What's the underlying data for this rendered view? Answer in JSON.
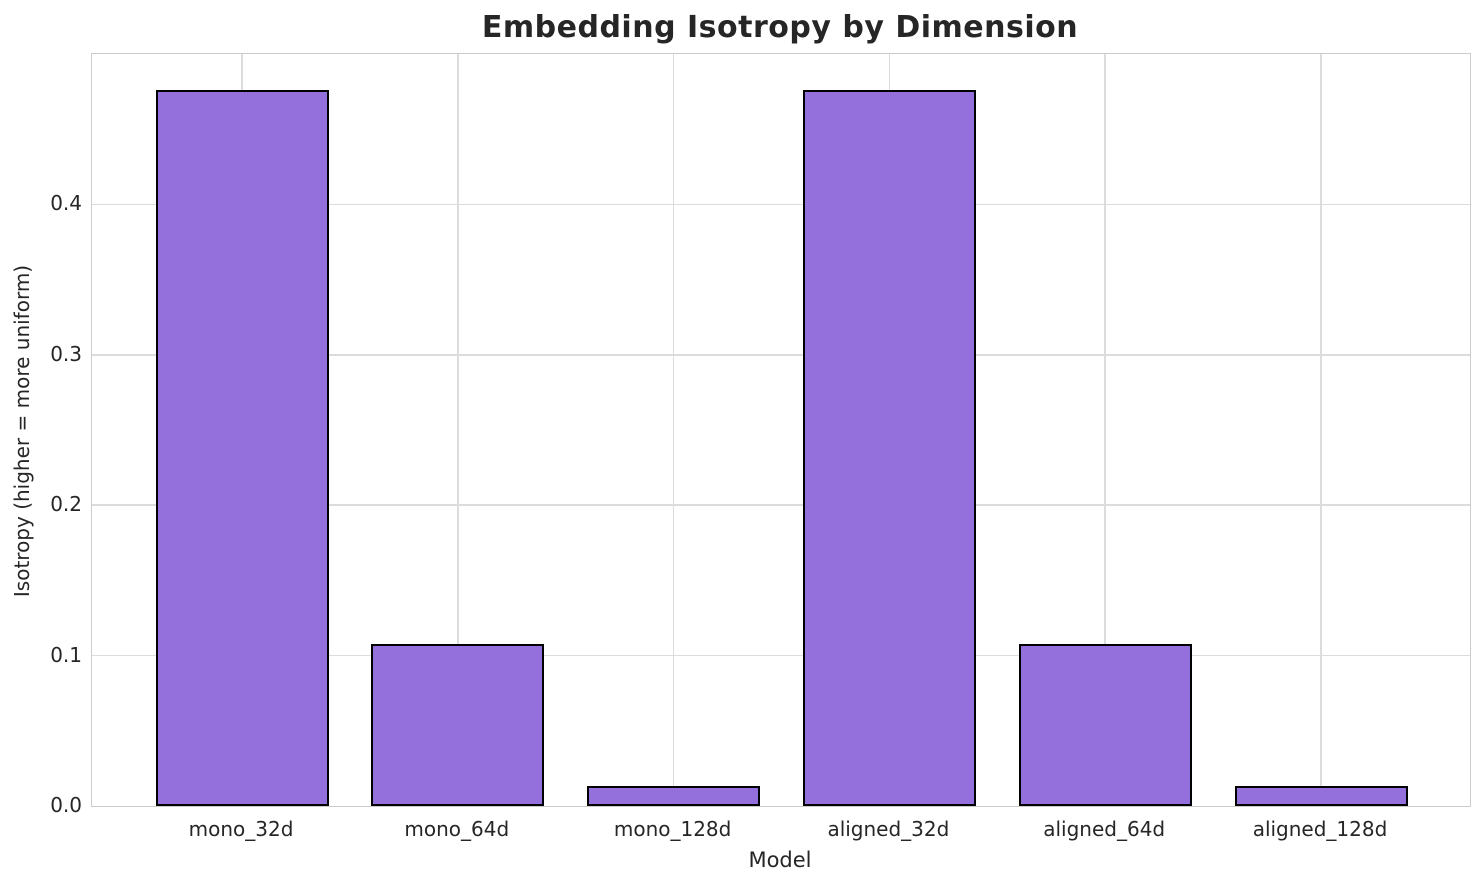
{
  "chart_data": {
    "type": "bar",
    "title": "Embedding Isotropy by Dimension",
    "xlabel": "Model",
    "ylabel": "Isotropy (higher = more uniform)",
    "categories": [
      "mono_32d",
      "mono_64d",
      "mono_128d",
      "aligned_32d",
      "aligned_64d",
      "aligned_128d"
    ],
    "values": [
      0.476,
      0.108,
      0.013,
      0.476,
      0.108,
      0.013
    ],
    "ylim": [
      0,
      0.5
    ],
    "yticks": [
      "0.0",
      "0.1",
      "0.2",
      "0.3",
      "0.4"
    ],
    "grid": true,
    "legend_position": "none",
    "bar_fill_color": "#9370DB",
    "bar_edge_color": "#000000",
    "grid_color": "#DCDCDC",
    "axes_edge_color": "#CCCCCC",
    "background_color": "#FFFFFF",
    "text_color": "#262626"
  }
}
